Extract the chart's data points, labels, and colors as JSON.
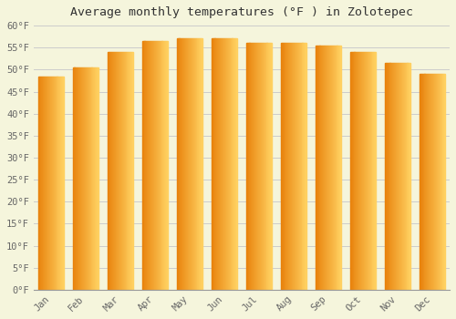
{
  "title": "Average monthly temperatures (°F ) in Zolotepec",
  "months": [
    "Jan",
    "Feb",
    "Mar",
    "Apr",
    "May",
    "Jun",
    "Jul",
    "Aug",
    "Sep",
    "Oct",
    "Nov",
    "Dec"
  ],
  "values": [
    48.5,
    50.5,
    54.0,
    56.5,
    57.2,
    57.2,
    56.0,
    56.0,
    55.5,
    54.0,
    51.5,
    49.0
  ],
  "bar_color_left": "#E8820C",
  "bar_color_right": "#FFD060",
  "ylim": [
    0,
    60
  ],
  "yticks": [
    0,
    5,
    10,
    15,
    20,
    25,
    30,
    35,
    40,
    45,
    50,
    55,
    60
  ],
  "ytick_labels": [
    "0°F",
    "5°F",
    "10°F",
    "15°F",
    "20°F",
    "25°F",
    "30°F",
    "35°F",
    "40°F",
    "45°F",
    "50°F",
    "55°F",
    "60°F"
  ],
  "background_color": "#F5F5DC",
  "grid_color": "#CCCCCC",
  "title_fontsize": 9.5,
  "tick_fontsize": 7.5,
  "font_family": "monospace"
}
